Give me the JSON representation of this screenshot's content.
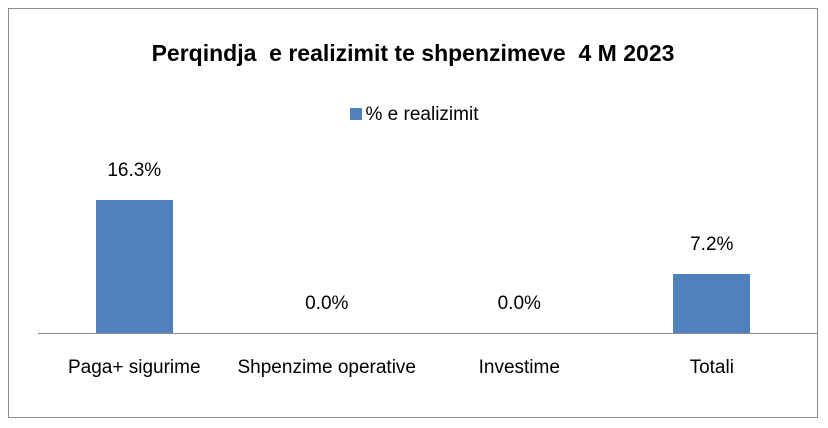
{
  "chart_data": {
    "type": "bar",
    "title": "Perqindja  e realizimit te shpenzimeve  4 M 2023",
    "categories": [
      "Paga+ sigurime",
      "Shpenzime operative",
      "Investime",
      "Totali"
    ],
    "series": [
      {
        "name": "% e realizimit",
        "color": "#4f81bd",
        "values": [
          16.3,
          0.0,
          0.0,
          7.2
        ],
        "value_labels": [
          "16.3%",
          "0.0%",
          "0.0%",
          "7.2%"
        ]
      }
    ],
    "legend": "top"
  }
}
